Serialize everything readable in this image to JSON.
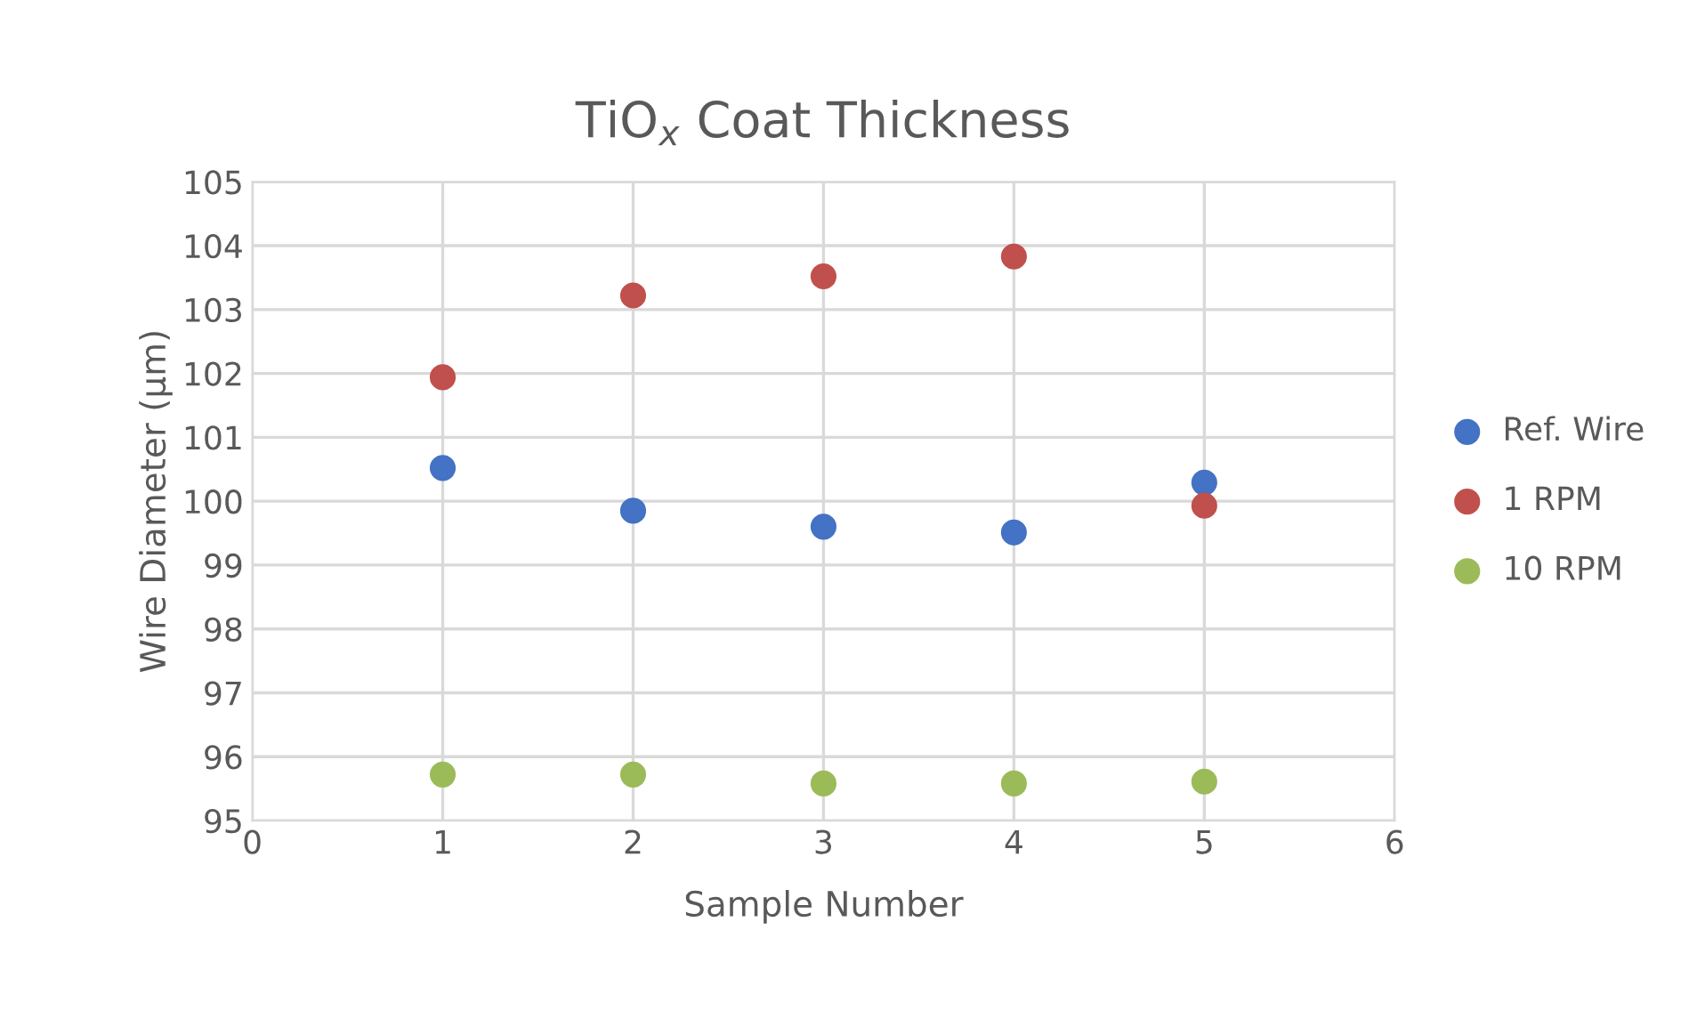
{
  "chart_data": {
    "type": "scatter",
    "title": "TiO$_{x}$ Coat Thickness",
    "xlabel": "Sample Number",
    "ylabel": "Wire Diameter (µm)",
    "x": [
      1,
      2,
      3,
      4,
      5
    ],
    "series": [
      {
        "name": "Ref. Wire",
        "color": "#4472c4",
        "values": [
          100.52,
          99.85,
          99.6,
          99.51,
          100.29
        ]
      },
      {
        "name": "1 RPM",
        "color": "#c0504d",
        "values": [
          101.94,
          103.22,
          103.52,
          103.83,
          99.93
        ]
      },
      {
        "name": "10 RPM",
        "color": "#9bbb59",
        "values": [
          95.72,
          95.72,
          95.58,
          95.58,
          95.61
        ]
      }
    ],
    "xlim": [
      0,
      6
    ],
    "xticks": [
      0,
      1,
      2,
      3,
      4,
      5,
      6
    ],
    "ylim": [
      95,
      105
    ],
    "yticks": [
      95,
      96,
      97,
      98,
      99,
      100,
      101,
      102,
      103,
      104,
      105
    ],
    "grid": true,
    "legend": "right",
    "marker": "circle"
  }
}
